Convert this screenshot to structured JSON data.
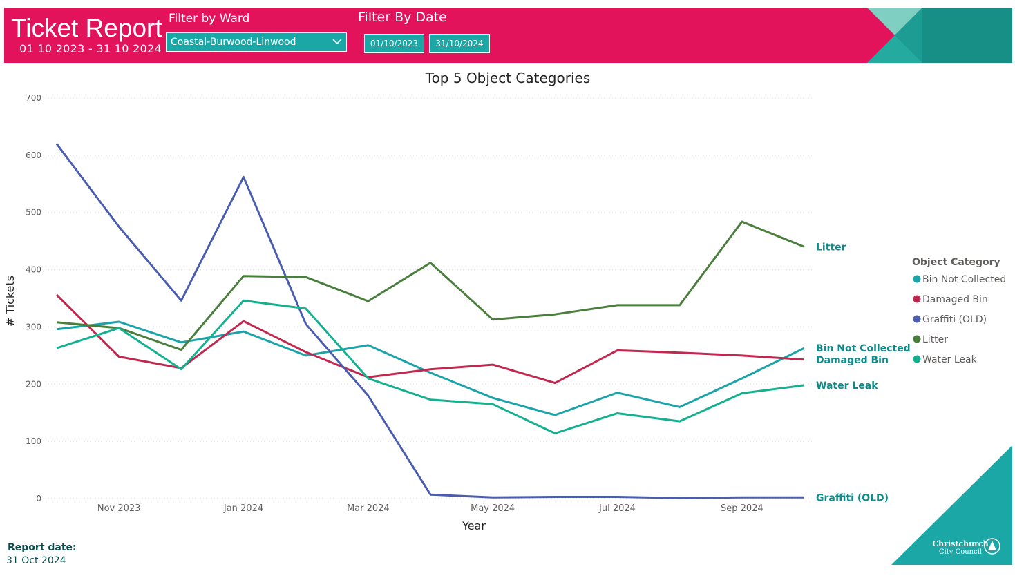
{
  "header": {
    "title": "Ticket Report",
    "date_range": "01 10 2023 - 31 10 2024",
    "ward_filter": {
      "label": "Filter by Ward",
      "value": "Coastal-Burwood-Linwood",
      "icon": "chevron-down-icon"
    },
    "date_filter": {
      "label": "Filter By Date",
      "start": "01/10/2023",
      "end": "31/10/2024"
    }
  },
  "chart_data": {
    "type": "line",
    "title": "Top 5 Object Categories",
    "xlabel": "Year",
    "ylabel": "# Tickets",
    "ylim": [
      0,
      700
    ],
    "yticks": [
      0,
      100,
      200,
      300,
      400,
      500,
      600,
      700
    ],
    "x": [
      "Oct 2023",
      "Nov 2023",
      "Dec 2023",
      "Jan 2024",
      "Feb 2024",
      "Mar 2024",
      "Apr 2024",
      "May 2024",
      "Jun 2024",
      "Jul 2024",
      "Aug 2024",
      "Sep 2024",
      "Oct 2024"
    ],
    "xtick_labels": [
      "Nov 2023",
      "Jan 2024",
      "Mar 2024",
      "May 2024",
      "Jul 2024",
      "Sep 2024"
    ],
    "grid": true,
    "legend": {
      "title": "Object Category",
      "placement": "right"
    },
    "series": [
      {
        "name": "Bin Not Collected",
        "color": "#1aa3a8",
        "values": [
          296,
          309,
          273,
          292,
          250,
          268,
          220,
          176,
          146,
          185,
          160,
          210,
          263
        ]
      },
      {
        "name": "Damaged Bin",
        "color": "#c0284f",
        "values": [
          356,
          248,
          228,
          310,
          256,
          212,
          226,
          234,
          202,
          259,
          255,
          250,
          243
        ]
      },
      {
        "name": "Graffiti (OLD)",
        "color": "#4a5dae",
        "values": [
          620,
          475,
          346,
          562,
          305,
          180,
          7,
          2,
          3,
          3,
          1,
          2,
          2
        ]
      },
      {
        "name": "Litter",
        "color": "#4a7e3c",
        "values": [
          308,
          298,
          260,
          389,
          387,
          345,
          412,
          313,
          322,
          338,
          338,
          484,
          440
        ]
      },
      {
        "name": "Water Leak",
        "color": "#14b08f",
        "values": [
          263,
          298,
          226,
          346,
          332,
          210,
          173,
          165,
          114,
          149,
          135,
          184,
          198
        ]
      }
    ],
    "end_labels": [
      {
        "series": "Litter",
        "text": "Litter"
      },
      {
        "series": "Bin Not Collected",
        "text": "Bin Not Collected"
      },
      {
        "series": "Damaged Bin",
        "text": "Damaged Bin"
      },
      {
        "series": "Water Leak",
        "text": "Water Leak"
      },
      {
        "series": "Graffiti (OLD)",
        "text": "Graffiti (OLD)"
      }
    ]
  },
  "footer": {
    "report_label": "Report date:",
    "report_date": "31 Oct 2024"
  },
  "logo": {
    "line1": "Christchurch",
    "line2": "City Council"
  },
  "colors": {
    "header_bg": "#e2135a",
    "accent_teal": "#1aa7a5",
    "label_teal": "#0d8a8a"
  }
}
